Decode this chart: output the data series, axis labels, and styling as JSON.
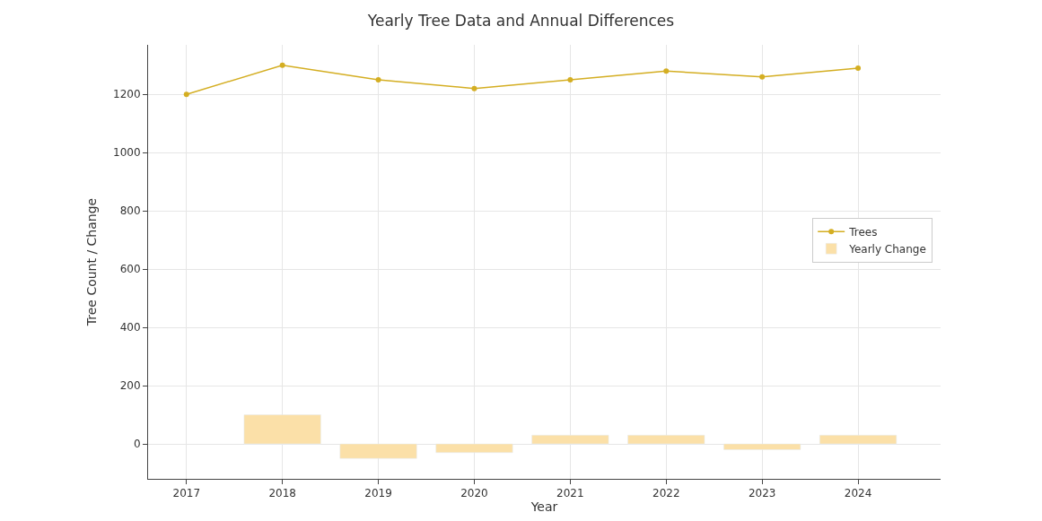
{
  "chart_data": {
    "type": "line",
    "title": "Yearly Tree Data and Annual Differences",
    "xlabel": "Year",
    "ylabel": "Tree Count / Change",
    "x": [
      2017,
      2018,
      2019,
      2020,
      2021,
      2022,
      2023,
      2024
    ],
    "series": [
      {
        "name": "Trees",
        "color": "#d4ae22",
        "marker": "circle",
        "values": [
          1200,
          1300,
          1250,
          1220,
          1250,
          1280,
          1260,
          1290
        ]
      },
      {
        "name": "Yearly Change",
        "type": "bar",
        "color": "#fbe0a8",
        "values": [
          null,
          100,
          -50,
          -30,
          30,
          30,
          -20,
          30
        ]
      }
    ],
    "xlim": [
      2016.6,
      2024.86
    ],
    "xticks": [
      2017,
      2018,
      2019,
      2020,
      2021,
      2022,
      2023,
      2024
    ],
    "ylim": [
      -120,
      1370
    ],
    "yticks": [
      0,
      200,
      400,
      600,
      800,
      1000,
      1200
    ],
    "grid": true,
    "legend": "right"
  }
}
